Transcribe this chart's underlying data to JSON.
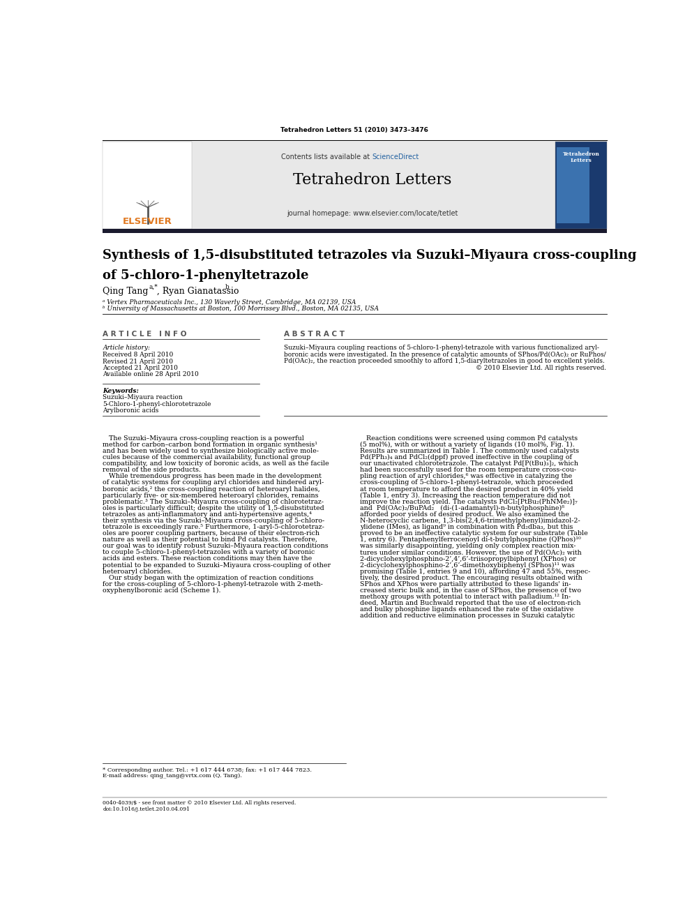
{
  "page_width": 9.92,
  "page_height": 13.23,
  "bg_color": "#ffffff",
  "top_citation": "Tetrahedron Letters 51 (2010) 3473–3476",
  "journal_name": "Tetrahedron Letters",
  "journal_homepage": "journal homepage: www.elsevier.com/locate/tetlet",
  "contents_text": "Contents lists available at ",
  "sciencedirect_text": "ScienceDirect",
  "sciencedirect_color": "#2060a0",
  "elsevier_color": "#e07820",
  "elsevier_text": "ELSEVIER",
  "article_title_line1": "Synthesis of 1,5-disubstituted tetrazoles via Suzuki–Miyaura cross-coupling",
  "article_title_line2": "of 5-chloro-1-phenyltetrazole",
  "authors_line": "Qing Tang",
  "authors_super": "a,*",
  "authors_rest": ", Ryan Gianatassio ",
  "authors_super2": "b",
  "affil_a": "ᵃ Vertex Pharmaceuticals Inc., 130 Waverly Street, Cambridge, MA 02139, USA",
  "affil_b": "ᵇ University of Massachusetts at Boston, 100 Morrissey Blvd., Boston, MA 02135, USA",
  "section_article_info": "A R T I C L E   I N F O",
  "section_abstract": "A B S T R A C T",
  "article_history_label": "Article history:",
  "received": "Received 8 April 2010",
  "revised": "Revised 21 April 2010",
  "accepted": "Accepted 21 April 2010",
  "available": "Available online 28 April 2010",
  "keywords_label": "Keywords:",
  "keyword1": "Suzuki–Miyaura reaction",
  "keyword2": "5-Chloro-1-phenyl-chlorotetrazole",
  "keyword3": "Arylboronic acids",
  "abstract_line1": "Suzuki–Miyaura coupling reactions of 5-chloro-1-phenyl-tetrazole with various functionalized aryl-",
  "abstract_line2": "boronic acids were investigated. In the presence of catalytic amounts of SPhos/Pd(OAc)₂ or RuPhos/",
  "abstract_line3": "Pd(OAc)₂, the reaction proceeded smoothly to afford 1,5-diaryltetrazoles in good to excellent yields.",
  "abstract_line4": "© 2010 Elsevier Ltd. All rights reserved.",
  "left_body": [
    "   The Suzuki–Miyaura cross-coupling reaction is a powerful",
    "method for carbon–carbon bond formation in organic synthesis¹",
    "and has been widely used to synthesize biologically active mole-",
    "cules because of the commercial availability, functional group",
    "compatibility, and low toxicity of boronic acids, as well as the facile",
    "removal of the side products.",
    "   While tremendous progress has been made in the development",
    "of catalytic systems for coupling aryl chlorides and hindered aryl-",
    "boronic acids,² the cross-coupling reaction of heteroaryl halides,",
    "particularly five- or six-membered heteroaryl chlorides, remains",
    "problematic.³ The Suzuki–Miyaura cross-coupling of chlorotetraz-",
    "oles is particularly difficult; despite the utility of 1,5-disubstituted",
    "tetrazoles as anti-inflammatory and anti-hypertensive agents,⁴",
    "their synthesis via the Suzuki–Miyaura cross-coupling of 5-chloro-",
    "tetrazole is exceedingly rare.⁵ Furthermore, 1-aryl-5-chlorotetraz-",
    "oles are poorer coupling partners, because of their electron-rich",
    "nature as well as their potential to bind Pd catalysts. Therefore,",
    "our goal was to identify robust Suzuki–Miyaura reaction conditions",
    "to couple 5-chloro-1-phenyl-tetrazoles with a variety of boronic",
    "acids and esters. These reaction conditions may then have the",
    "potential to be expanded to Suzuki–Miyaura cross-coupling of other",
    "heteroaryl chlorides.",
    "   Our study began with the optimization of reaction conditions",
    "for the cross-coupling of 5-chloro-1-phenyl-tetrazole with 2-meth-",
    "oxyphenylboronic acid (Scheme 1)."
  ],
  "right_body": [
    "   Reaction conditions were screened using common Pd catalysts",
    "(5 mol%), with or without a variety of ligands (10 mol%, Fig. 1).",
    "Results are summarized in Table 1. The commonly used catalysts",
    "Pd(PPh₃)₄ and PdCl₂(dppf) proved ineffective in the coupling of",
    "our unactivated chlorotetrazole. The catalyst Pd[P(tBu)₃]₂, which",
    "had been successfully used for the room temperature cross-cou-",
    "pling reaction of aryl chlorides,⁶ was effective in catalyzing the",
    "cross-coupling of 5-chloro-1-phenyl-tetrazole, which proceeded",
    "at room temperature to afford the desired product in 40% yield",
    "(Table 1, entry 3). Increasing the reaction temperature did not",
    "improve the reaction yield. The catalysts PdCl₂[PtBu₂(PhNMe₂)]₇",
    "and  Pd(OAc)₂/BuPAd₂   (di-(1-adamantyl)-n-butylphosphine)⁸",
    "afforded poor yields of desired product. We also examined the",
    "N-heterocyclic carbene, 1,3-bis(2,4,6-trimethylphenyl)imidazol-2-",
    "ylidene (IMes), as ligand⁹ in combination with Pd₂dba₃, but this",
    "proved to be an ineffective catalytic system for our substrate (Table",
    "1, entry 6). Pentaphenylferrocenoyl di-t-butylphosphine (QPhos)¹⁰",
    "was similarly disappointing, yielding only complex reaction mix-",
    "tures under similar conditions. However, the use of Pd(OAc)₂ with",
    "2-dicyclohexylphosphino-2’,4’,6’-triisopropylbiphenyl (XPhos) or",
    "2-dicyclohexylphosphino-2’,6’-dimethoxybiphenyl (SPhos)¹¹ was",
    "promising (Table 1, entries 9 and 10), affording 47 and 55%, respec-",
    "tively, the desired product. The encouraging results obtained with",
    "SPhos and XPhos were partially attributed to these ligands' in-",
    "creased steric bulk and, in the case of SPhos, the presence of two",
    "methoxy groups with potential to interact with palladium.¹² In-",
    "deed, Martin and Buchwald reported that the use of electron-rich",
    "and bulky phosphine ligands enhanced the rate of the oxidative",
    "addition and reductive elimination processes in Suzuki catalytic"
  ],
  "footnote_star": "* Corresponding author. Tel.: +1 617 444 6738; fax: +1 617 444 7823.",
  "footnote_email": "E-mail address: qing_tang@vrtx.com (Q. Tang).",
  "footer_left": "0040-4039/$ - see front matter © 2010 Elsevier Ltd. All rights reserved.",
  "footer_doi": "doi:10.1016/j.tetlet.2010.04.091",
  "gray_band_color": "#e8e8e8",
  "dark_band_color": "#1a1a2e",
  "journal_cover_color1": "#1a3a6e",
  "journal_cover_color2": "#4a8acc"
}
